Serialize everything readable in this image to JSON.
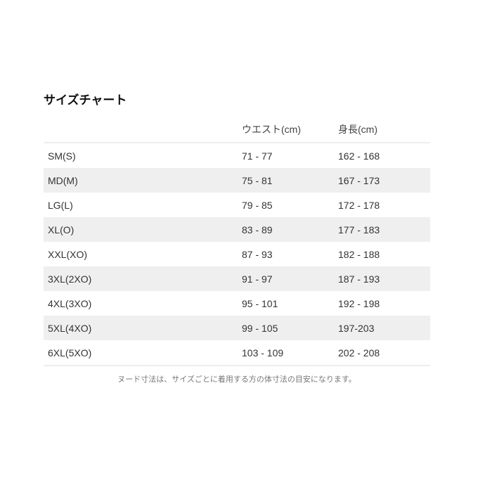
{
  "title": "サイズチャート",
  "headers": [
    "",
    "ウエスト(cm)",
    "身長(cm)"
  ],
  "rows": [
    [
      "SM(S)",
      "71 - 77",
      "162 - 168"
    ],
    [
      "MD(M)",
      "75 - 81",
      "167 - 173"
    ],
    [
      "LG(L)",
      "79 - 85",
      "172 - 178"
    ],
    [
      "XL(O)",
      "83 - 89",
      "177 - 183"
    ],
    [
      "XXL(XO)",
      "87 - 93",
      "182 - 188"
    ],
    [
      "3XL(2XO)",
      "91 - 97",
      "187 - 193"
    ],
    [
      "4XL(3XO)",
      "95 - 101",
      "192 - 198"
    ],
    [
      "5XL(4XO)",
      "99 - 105",
      "197-203"
    ],
    [
      "6XL(5XO)",
      "103 - 109",
      "202 - 208"
    ]
  ],
  "note": "ヌード寸法は、サイズごとに着用する方の体寸法の目安になります。",
  "colors": {
    "stripe": "#efefef",
    "border": "#eeeeee"
  }
}
